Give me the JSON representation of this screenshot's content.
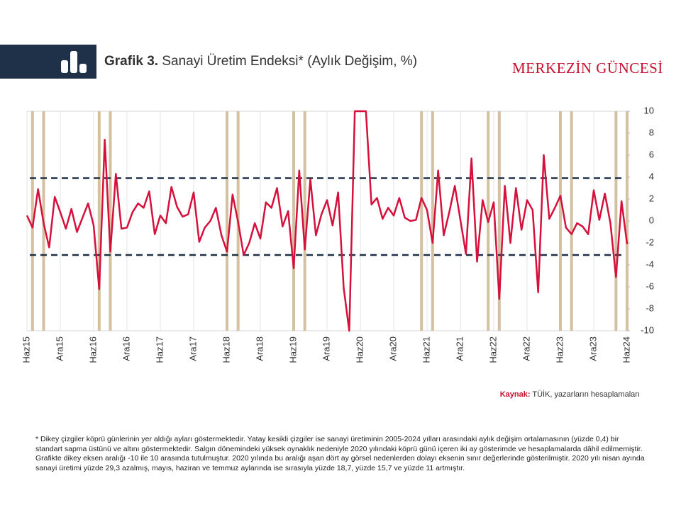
{
  "header": {
    "title_bold": "Grafik 3.",
    "title": "Sanayi Üretim Endeksi* (Aylık Değişim, %)",
    "brand": "MERKEZİN GÜNCESİ"
  },
  "chart_data": {
    "type": "line",
    "color": "#d5103b",
    "grid": true,
    "categories": [
      "Haz15",
      null,
      null,
      null,
      null,
      null,
      "Ara15",
      null,
      null,
      null,
      null,
      null,
      "Haz16",
      null,
      null,
      null,
      null,
      null,
      "Ara16",
      null,
      null,
      null,
      null,
      null,
      "Haz17",
      null,
      null,
      null,
      null,
      null,
      "Ara17",
      null,
      null,
      null,
      null,
      null,
      "Haz18",
      null,
      null,
      null,
      null,
      null,
      "Ara18",
      null,
      null,
      null,
      null,
      null,
      "Haz19",
      null,
      null,
      null,
      null,
      null,
      "Ara19",
      null,
      null,
      null,
      null,
      null,
      "Haz20",
      null,
      null,
      null,
      null,
      null,
      "Ara20",
      null,
      null,
      null,
      null,
      null,
      "Haz21",
      null,
      null,
      null,
      null,
      null,
      "Ara21",
      null,
      null,
      null,
      null,
      null,
      "Haz22",
      null,
      null,
      null,
      null,
      null,
      "Ara22",
      null,
      null,
      null,
      null,
      null,
      "Haz23",
      null,
      null,
      null,
      null,
      null,
      "Ara23",
      null,
      null,
      null,
      null,
      null,
      "Haz24"
    ],
    "values": [
      0.5,
      -0.6,
      2.9,
      -0.2,
      -2.4,
      2.2,
      0.8,
      -0.7,
      1.1,
      -1.0,
      0.3,
      1.6,
      -0.4,
      -6.2,
      7.4,
      -2.8,
      4.3,
      -0.7,
      -0.6,
      0.8,
      1.6,
      1.2,
      2.7,
      -1.2,
      0.5,
      -0.2,
      3.1,
      1.3,
      0.4,
      0.6,
      2.6,
      -1.9,
      -0.6,
      0,
      1.2,
      -1.3,
      -2.8,
      2.4,
      -0.1,
      -3.1,
      -2.0,
      -0.2,
      -1.6,
      1.7,
      1.2,
      3.0,
      -0.5,
      0.9,
      -4.3,
      4.6,
      -2.6,
      3.8,
      -1.3,
      0.6,
      1.9,
      -0.4,
      2.6,
      -6.1,
      -10,
      10,
      10,
      10,
      1.5,
      2.1,
      0.2,
      1.2,
      0.5,
      2.1,
      0.3,
      0,
      0.1,
      2.1,
      1.0,
      -2.0,
      4.6,
      -1.3,
      0.8,
      3.2,
      0.1,
      -3.0,
      5.7,
      -3.7,
      1.9,
      -0.1,
      1.7,
      -7.1,
      3.2,
      -2.0,
      3.0,
      -0.8,
      1.9,
      1.0,
      -6.5,
      6.0,
      0.2,
      1.2,
      2.3,
      -0.6,
      -1.2,
      -0.2,
      -0.5,
      -1.2,
      2.8,
      0.1,
      2.5,
      -0.2,
      -5.1,
      1.8,
      -2.1
    ],
    "ylim": [
      -10,
      10
    ],
    "yticks": [
      10,
      8,
      6,
      4,
      2,
      0,
      -2,
      -4,
      -6,
      -8,
      -10
    ],
    "reference_lines": [
      3.9,
      -3.1
    ],
    "bridge_day_months": [
      1,
      3,
      13,
      15,
      36,
      38,
      48,
      50,
      71,
      73,
      83,
      85,
      96,
      98,
      106,
      108
    ],
    "band_color": "#d4c1a1"
  },
  "source": {
    "label": "Kaynak:",
    "text": "TÜİK, yazarların hesaplamaları"
  },
  "footnote": "* Dikey çizgiler köprü günlerinin yer aldığı ayları göstermektedir. Yatay kesikli çizgiler ise sanayi üretiminin 2005-2024 yılları arasındaki aylık değişim ortalamasının (yüzde 0,4) bir standart sapma üstünü ve altını göstermektedir. Salgın dönemindeki yüksek oynaklık nedeniyle 2020 yılındaki köprü günü içeren iki ay gösterimde ve hesaplamalarda dâhil edilmemiştir. Grafikte dikey eksen aralığı -10 ile 10 arasında tutulmuştur. 2020 yılında bu aralığı aşan dört ay görsel nedenlerden dolayı eksenin sınır değerlerinde gösterilmiştir. 2020 yılı nisan ayında sanayi üretimi yüzde 29,3 azalmış, mayıs, haziran ve temmuz aylarında ise sırasıyla yüzde 18,7, yüzde 15,7 ve yüzde 11 artmıştır."
}
